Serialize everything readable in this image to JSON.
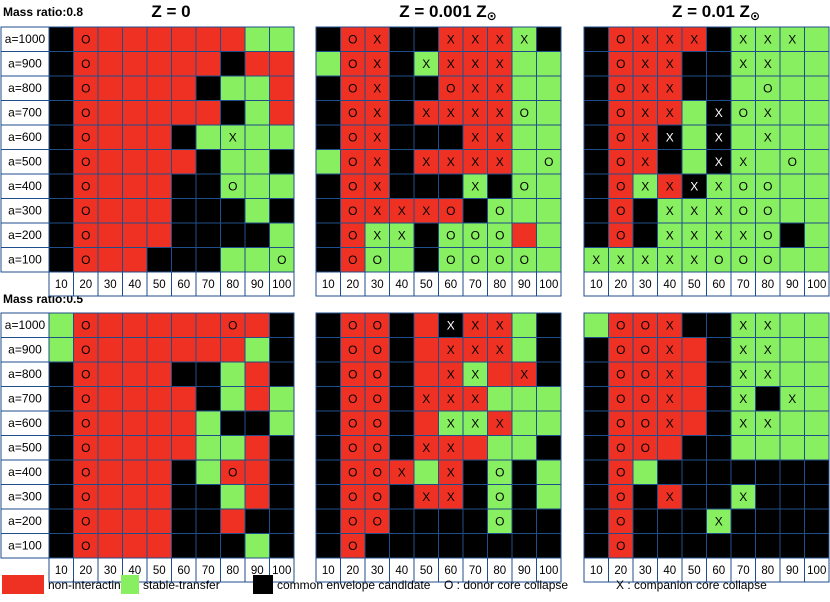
{
  "figure": {
    "legend": {
      "non_interacting": "non-interacting",
      "stable_transfer": "stable-transfer",
      "common_envelope": "common envelope candidate",
      "donor_collapse": "O : donor core collapse",
      "companion_collapse": "X : companion core collapse"
    },
    "colors": {
      "R": "#ef3124",
      "G": "#88ef60",
      "B": "#000000",
      "grid": "#1f4e8c"
    }
  },
  "chart_data": {
    "type": "heatmap",
    "y_labels": [
      "a=1000",
      "a=900",
      "a=800",
      "a=700",
      "a=600",
      "a=500",
      "a=400",
      "a=300",
      "a=200",
      "a=100"
    ],
    "x_labels": [
      "10",
      "20",
      "30",
      "40",
      "50",
      "60",
      "70",
      "80",
      "90",
      "100"
    ],
    "legend_codes": {
      "R": "non-interacting",
      "G": "stable-transfer",
      "B": "common envelope candidate",
      "O": "donor core collapse",
      "X": "companion core collapse"
    },
    "row_titles": [
      "Mass ratio:0.8",
      "Mass ratio:0.5"
    ],
    "column_titles": [
      {
        "main": "Z = 0",
        "sub": ""
      },
      {
        "main": "Z = 0.001 Z",
        "sub": "⊙"
      },
      {
        "main": "Z = 0.01 Z",
        "sub": "⊙"
      }
    ],
    "panels": [
      {
        "row": 0,
        "col": 0,
        "colors": [
          "BRRRRRRRGG",
          "BRRRRRRBRR",
          "BRRRRRBGGR",
          "BRRRRRRBGR",
          "BRRRRBGGGG",
          "BRRRRRBGGB",
          "BRRRRBBGGG",
          "BRRRRBBBGB",
          "BRRRRBBBBG",
          "BRRRBBBGGG"
        ],
        "marks": [
          ".O........",
          ".O........",
          ".O........",
          ".O........",
          ".O.....X..",
          ".O........",
          ".O.....O..",
          ".O........",
          ".O........",
          ".O.......O"
        ]
      },
      {
        "row": 0,
        "col": 1,
        "colors": [
          "BRRBBRRRGB",
          "GRRBGRRRGG",
          "BRRBBRRRGG",
          "BRRBRRRRGG",
          "BRRBBBRRGG",
          "GRRBRRRRGG",
          "BRRBBBGBGG",
          "BRRRRRBGGG",
          "BRGGBGGGRG",
          "BRGGBGGGGG"
        ],
        "marks": [
          ".OX..XXXX.",
          ".OX.XXXX..",
          ".OX..OXX..",
          ".OX.XXXXO.",
          ".OX...XX..",
          ".OX.XXXX.O",
          ".OX...X.O.",
          ".OXXXO.O..",
          ".OXX.OOO..",
          ".OO..OOOO."
        ]
      },
      {
        "row": 0,
        "col": 2,
        "colors": [
          "BRRRRBGGGG",
          "BRRRBBGGGG",
          "BRRRBBGGGG",
          "BRRRGBGGGG",
          "BRRBGBGGGG",
          "BRRBGBGGGG",
          "BRGRBGGGGG",
          "BRBGGGGGGG",
          "BRBGGGGGBG",
          "GGGGGGGGGG"
        ],
        "marks": [
          ".OXXX.XXX.",
          ".OXX..XX..",
          ".OXX...O..",
          ".OXX.XOX..",
          ".OXX.X.X..",
          ".OX..XX.O.",
          ".OXXXXOO..",
          ".O.XXXOO..",
          ".O.XXXXO..",
          "XXXXXOOO.."
        ]
      },
      {
        "row": 1,
        "col": 0,
        "colors": [
          "GRRRRRRRRB",
          "GRRRRRRRGB",
          "BRRRRBBGRB",
          "BRRRRRBGRG",
          "BRRRRRGBBG",
          "BRRRRRGGRB",
          "BRRRRBGRRB",
          "BRRRRBBGRB",
          "BRRRRBBRBB",
          "BRRRRBBBGB"
        ],
        "marks": [
          ".O.....O..",
          ".O........",
          ".O........",
          ".O........",
          ".O........",
          ".O........",
          ".O.....O..",
          ".O........",
          ".O........",
          ".O........"
        ]
      },
      {
        "row": 1,
        "col": 1,
        "colors": [
          "BRRBRBRRGB",
          "BRRBRRRRGB",
          "BRRBRRGRRB",
          "BRRBRRRGGG",
          "BRRBRGGRGG",
          "BRRBRRRGGB",
          "BRRRGRBGBG",
          "BRRBRRBGBG",
          "BRRBBBBGBB",
          "BRBBBBBBBB"
        ],
        "marks": [
          ".OO..XXX..",
          ".OO..XXX..",
          ".OO..XX.X.",
          ".OO.XXX...",
          ".OO..XXX..",
          ".OO.XX....",
          ".OOX.X.O..",
          ".OO.XX.O..",
          ".OO....O..",
          ".O........"
        ]
      },
      {
        "row": 1,
        "col": 2,
        "colors": [
          "GRRRBBGGGG",
          "BRRRRBGGGG",
          "BRRRRBGGGG",
          "BRRRRBGBGG",
          "BRRRRBGGGG",
          "BRRRBBGGGG",
          "BRGBBBBBBB",
          "BRBRBBGBBB",
          "BRBBBGBBBB",
          "BRBBBBBBBB"
        ],
        "marks": [
          ".OOX..XX..",
          ".OOX..XX..",
          ".OOX..XX..",
          ".OOX..X.X.",
          ".OOX..XX..",
          ".OO.......",
          ".O........",
          ".O.X..X...",
          ".O...X....",
          ".O........"
        ]
      }
    ]
  }
}
